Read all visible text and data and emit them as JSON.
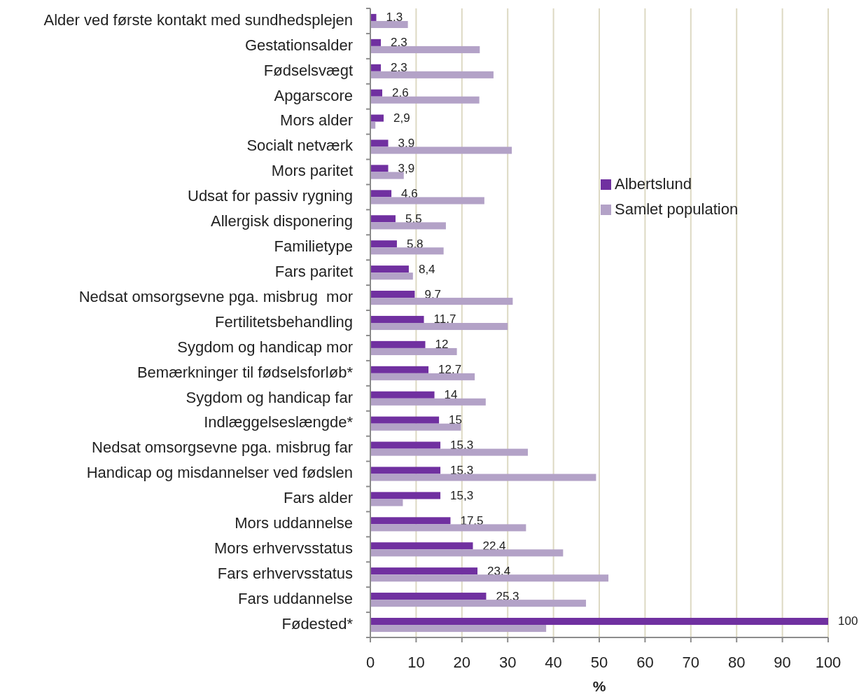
{
  "chart_data": {
    "type": "bar",
    "orientation": "horizontal",
    "xlabel": "%",
    "categories": [
      "Alder ved første kontakt med sundhedsplejen",
      "Gestationsalder",
      "Fødselsvægt",
      "Apgarscore",
      "Mors alder",
      "Socialt netværk",
      "Mors paritet",
      "Udsat for passiv rygning",
      "Allergisk disponering",
      "Familietype",
      "Fars paritet",
      "Nedsat omsorgsevne pga. misbrug  mor",
      "Fertilitetsbehandling",
      "Sygdom og handicap mor",
      "Bemærkninger til fødselsforløb*",
      "Sygdom og handicap far",
      "Indlæggelseslængde*",
      "Nedsat omsorgsevne pga. misbrug far",
      "Handicap og misdannelser ved fødslen",
      "Fars alder",
      "Mors uddannelse",
      "Mors erhvervsstatus",
      "Fars erhvervsstatus",
      "Fars uddannelse",
      "Fødested*"
    ],
    "series": [
      {
        "name": "Albertslund",
        "color": "#7030a0",
        "values": [
          1.3,
          2.3,
          2.3,
          2.6,
          2.9,
          3.9,
          3.9,
          4.6,
          5.5,
          5.8,
          8.4,
          9.7,
          11.7,
          12,
          12.7,
          14,
          15,
          15.3,
          15.3,
          15.3,
          17.5,
          22.4,
          23.4,
          25.3,
          100
        ],
        "value_labels": [
          "1,3",
          "2,3",
          "2,3",
          "2,6",
          "2,9",
          "3,9",
          "3,9",
          "4,6",
          "5,5",
          "5,8",
          "8,4",
          "9,7",
          "11,7",
          "12",
          "12,7",
          "14",
          "15",
          "15,3",
          "15,3",
          "15,3",
          "17,5",
          "22,4",
          "23,4",
          "25,3",
          "100"
        ]
      },
      {
        "name": "Samlet population",
        "color": "#b3a2c7",
        "values": [
          8.2,
          23.9,
          26.9,
          23.8,
          1.1,
          30.9,
          7.3,
          24.9,
          16.5,
          16.0,
          9.3,
          31.1,
          30.0,
          18.9,
          22.8,
          25.2,
          19.8,
          34.4,
          49.3,
          7.1,
          34.0,
          42.1,
          52.0,
          47.1,
          38.4
        ]
      }
    ],
    "xlim": [
      0,
      100
    ],
    "xticks": [
      0,
      10,
      20,
      30,
      40,
      50,
      60,
      70,
      80,
      90,
      100
    ],
    "grid": "x",
    "legend": "top right"
  }
}
